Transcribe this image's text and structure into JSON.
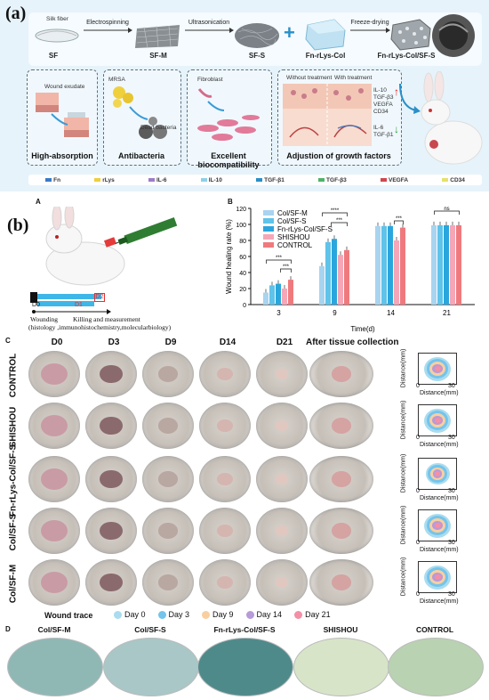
{
  "panel_a": {
    "label": "(a)",
    "silk_fiber_label": "Silk fiber",
    "steps": [
      {
        "name": "SF"
      },
      {
        "name": "SF-M",
        "arrow": "Electrospinning"
      },
      {
        "name": "SF-S",
        "arrow": "Ultrasonication"
      },
      {
        "name": "Fn-rLys-Col"
      },
      {
        "name": "Fn-rLys-Col/SF-S",
        "arrow": "Freeze-drying"
      }
    ],
    "boxes": [
      {
        "title": "High-absorption",
        "note": "Wound exudate"
      },
      {
        "title": "Antibacteria",
        "note": "MRSA",
        "note2": "Dead bacteria"
      },
      {
        "title": "Excellent biocompatibility",
        "note": "Fibroblast"
      },
      {
        "title": "Adjustion of growth factors",
        "note": "Without treatment",
        "note2": "With treatment"
      }
    ],
    "factors_up": [
      "IL-10",
      "TGF-β3",
      "VEGFA",
      "CD34"
    ],
    "factors_down": [
      "IL-6",
      "TGF-β1"
    ],
    "legend": [
      "Fn",
      "rLys",
      "IL-6",
      "IL-10",
      "TGF-β1",
      "TGF-β3",
      "VEGFA",
      "CD34"
    ]
  },
  "panel_b": {
    "label": "(b)",
    "sublabel_a": "A",
    "sublabel_b": "B",
    "timeline_d0": "D0",
    "timeline_d1": "D1",
    "timeline_d2": "D2",
    "timeline_text1": "Wounding",
    "timeline_text2": "Killing and measurement",
    "timeline_text3": "(histology ,immunohistochemistry,molecularbiology)"
  },
  "chart_data": {
    "type": "bar",
    "categories": [
      "3",
      "9",
      "14",
      "21"
    ],
    "xlabel": "Time(d)",
    "ylabel": "Wound healing rate (%)",
    "ylim": [
      0,
      120
    ],
    "yticks": [
      0,
      20,
      40,
      60,
      80,
      100,
      120
    ],
    "series": [
      {
        "name": "Col/SF-M",
        "values": [
          15,
          48,
          98,
          99
        ]
      },
      {
        "name": "Col/SF-S",
        "values": [
          24,
          78,
          98,
          99
        ]
      },
      {
        "name": "Fn-rLys-Col/SF-S",
        "values": [
          26,
          82,
          98,
          99
        ]
      },
      {
        "name": "SHISHOU",
        "values": [
          20,
          62,
          80,
          99
        ]
      },
      {
        "name": "CONTROL",
        "values": [
          31,
          68,
          96,
          99
        ]
      }
    ],
    "colors": [
      "#a8d4f0",
      "#5fc3ea",
      "#2aa6dd",
      "#f5a7b8",
      "#ef7a7e"
    ],
    "annotations": [
      "***",
      "***",
      "****",
      "***",
      "***",
      "ns"
    ]
  },
  "panel_c": {
    "label": "C",
    "columns": [
      "D0",
      "D3",
      "D9",
      "D14",
      "D21",
      "After tissue collection"
    ],
    "rows": [
      "CONTROL",
      "SHISHOU",
      "Fn-rLys-Col/SF-S",
      "Col/SF-S",
      "Col/SF-M"
    ],
    "trace_axis_y": "Distance(mm)",
    "trace_axis_x": "Distance(mm)",
    "trace_tick_0": "0",
    "trace_tick_30": "30",
    "legend_title": "Wound trace",
    "legend": [
      {
        "label": "Day 0",
        "color": "#a9dcef"
      },
      {
        "label": "Day 3",
        "color": "#74c4ec"
      },
      {
        "label": "Day 9",
        "color": "#f8cfa0"
      },
      {
        "label": "Day 14",
        "color": "#b79ad8"
      },
      {
        "label": "Day 21",
        "color": "#f38fa6"
      }
    ]
  },
  "panel_d": {
    "label": "D",
    "plates": [
      {
        "label": "Col/SF-M",
        "color": "#8fb8b5"
      },
      {
        "label": "Col/SF-S",
        "color": "#a9c7c7"
      },
      {
        "label": "Fn-rLys-Col/SF-S",
        "color": "#4f8a8b"
      },
      {
        "label": "SHISHOU",
        "color": "#d7e4c8"
      },
      {
        "label": "CONTROL",
        "color": "#b9d2b2"
      }
    ]
  }
}
